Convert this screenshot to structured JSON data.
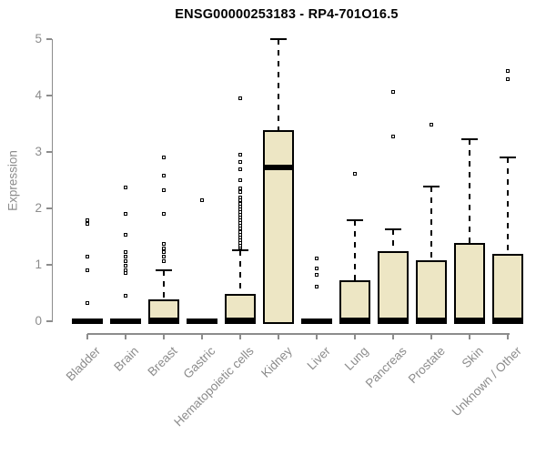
{
  "chart_data": {
    "type": "boxplot",
    "title": "ENSG00000253183 - RP4-701O16.5",
    "ylabel": "Expression",
    "xlabel": "",
    "ylim": [
      0,
      5
    ],
    "yticks": [
      "0",
      "1",
      "2",
      "3",
      "4",
      "5"
    ],
    "grid": false,
    "legend": "none",
    "colors": {
      "box_fill": "#EDE6C4",
      "box_stroke": "#000000",
      "axis": "#8c8c8c",
      "tick_label": "#8c8c8c",
      "title": "#000000"
    },
    "categories": [
      "Bladder",
      "Brain",
      "Breast",
      "Gastric",
      "Hematopoietic cells",
      "Kidney",
      "Liver",
      "Lung",
      "Pancreas",
      "Prostate",
      "Skin",
      "Unknown / Other"
    ],
    "boxes": [
      {
        "label": "Bladder",
        "q1": 0,
        "median": 0.02,
        "q3": 0.02,
        "whisker_high": 0.02,
        "outliers": [
          0.32,
          0.89,
          1.13,
          1.71,
          1.79
        ]
      },
      {
        "label": "Brain",
        "q1": 0,
        "median": 0.02,
        "q3": 0.02,
        "whisker_high": 0.02,
        "outliers": [
          0.45,
          0.84,
          0.9,
          0.97,
          1.05,
          1.13,
          1.21,
          1.53,
          1.9,
          2.37
        ]
      },
      {
        "label": "Breast",
        "q1": 0,
        "median": 0.02,
        "q3": 0.38,
        "whisker_high": 0.91,
        "outliers": [
          1.06,
          1.14,
          1.21,
          1.29,
          1.37,
          1.9,
          2.32,
          2.58,
          2.9
        ]
      },
      {
        "label": "Gastric",
        "q1": 0,
        "median": 0.02,
        "q3": 0.02,
        "whisker_high": 0.02,
        "outliers": [
          2.13
        ]
      },
      {
        "label": "Hematopoietic cells",
        "q1": 0,
        "median": 0.02,
        "q3": 0.49,
        "whisker_high": 1.26,
        "outliers": [
          1.3,
          1.33,
          1.38,
          1.43,
          1.48,
          1.53,
          1.58,
          1.63,
          1.68,
          1.73,
          1.78,
          1.83,
          1.88,
          1.93,
          1.98,
          2.03,
          2.08,
          2.13,
          2.18,
          2.28,
          2.35,
          2.5,
          2.68,
          2.82,
          2.95,
          3.94
        ]
      },
      {
        "label": "Kidney",
        "q1": 0,
        "median": 2.73,
        "q3": 3.38,
        "whisker_high": 5.0,
        "outliers": []
      },
      {
        "label": "Liver",
        "q1": 0,
        "median": 0.02,
        "q3": 0.02,
        "whisker_high": 0.02,
        "outliers": [
          0.61,
          0.81,
          0.92,
          1.11
        ]
      },
      {
        "label": "Lung",
        "q1": 0,
        "median": 0.02,
        "q3": 0.73,
        "whisker_high": 1.79,
        "outliers": [
          2.6
        ]
      },
      {
        "label": "Pancreas",
        "q1": 0,
        "median": 0.02,
        "q3": 1.25,
        "whisker_high": 1.63,
        "outliers": [
          3.26,
          4.06
        ]
      },
      {
        "label": "Prostate",
        "q1": 0,
        "median": 0.02,
        "q3": 1.08,
        "whisker_high": 2.39,
        "outliers": [
          3.47
        ]
      },
      {
        "label": "Skin",
        "q1": 0,
        "median": 0.02,
        "q3": 1.39,
        "whisker_high": 3.23,
        "outliers": []
      },
      {
        "label": "Unknown / Other",
        "q1": 0,
        "median": 0.02,
        "q3": 1.19,
        "whisker_high": 2.9,
        "outliers": [
          4.29,
          4.42
        ]
      }
    ]
  }
}
